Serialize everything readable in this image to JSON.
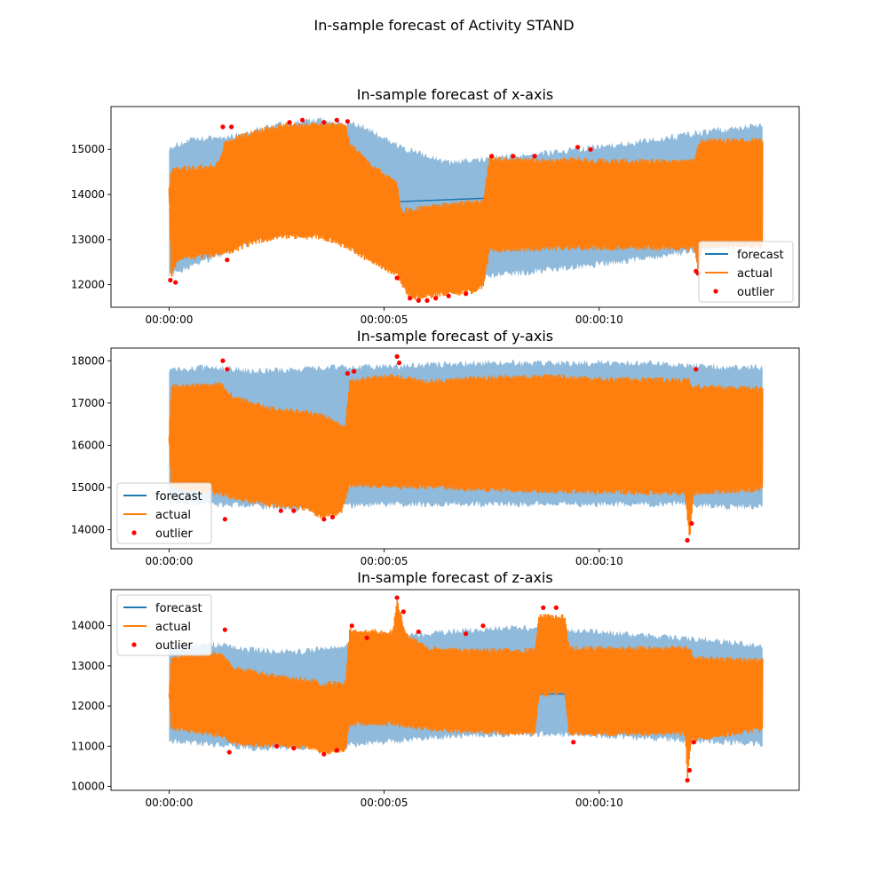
{
  "figure": {
    "suptitle": "In-sample forecast of Activity STAND"
  },
  "colors": {
    "forecast": "#1f77b4",
    "actual": "#ff7f0e",
    "outlier": "#ff0000",
    "band": "#8fbadb"
  },
  "chart_data": [
    {
      "type": "line",
      "title": "In-sample forecast of x-axis",
      "xlabel": "",
      "ylabel": "",
      "x_unit": "seconds",
      "xlim": [
        -1.35,
        14.65
      ],
      "ylim": [
        11500,
        15950
      ],
      "x_ticks": [
        0,
        5,
        10
      ],
      "x_tick_labels": [
        "00:00:00",
        "00:00:05",
        "00:00:10"
      ],
      "y_ticks": [
        12000,
        13000,
        14000,
        15000
      ],
      "y_tick_labels": [
        "12000",
        "13000",
        "14000",
        "15000"
      ],
      "legend": {
        "placement": "lower right",
        "entries": [
          "forecast",
          "actual",
          "outlier"
        ]
      },
      "series": [
        {
          "name": "forecast",
          "x": [
            0,
            13.8
          ],
          "values": [
            13650,
            14150
          ]
        },
        {
          "name": "actual",
          "upper": [
            [
              0,
              14150
            ],
            [
              0.05,
              14600
            ],
            [
              1.1,
              14700
            ],
            [
              1.3,
              15200
            ],
            [
              1.5,
              15300
            ],
            [
              2.0,
              15450
            ],
            [
              2.7,
              15600
            ],
            [
              3.5,
              15600
            ],
            [
              4.1,
              15600
            ],
            [
              4.2,
              15200
            ],
            [
              4.7,
              14700
            ],
            [
              5.3,
              14300
            ],
            [
              5.4,
              13700
            ],
            [
              6.2,
              13800
            ],
            [
              7.1,
              13900
            ],
            [
              7.3,
              13900
            ],
            [
              7.45,
              14850
            ],
            [
              9.0,
              14800
            ],
            [
              9.5,
              14850
            ],
            [
              9.8,
              14800
            ],
            [
              12.2,
              14800
            ],
            [
              12.35,
              15250
            ],
            [
              13.8,
              15250
            ]
          ],
          "lower": [
            [
              0,
              14150
            ],
            [
              0.05,
              12100
            ],
            [
              0.2,
              12500
            ],
            [
              1.0,
              12600
            ],
            [
              1.5,
              12700
            ],
            [
              2.0,
              12900
            ],
            [
              2.7,
              13000
            ],
            [
              3.5,
              13000
            ],
            [
              4.1,
              12800
            ],
            [
              4.7,
              12450
            ],
            [
              5.3,
              12150
            ],
            [
              5.6,
              11650
            ],
            [
              6.2,
              11700
            ],
            [
              7.1,
              11800
            ],
            [
              7.3,
              11900
            ],
            [
              7.45,
              12700
            ],
            [
              9.0,
              12750
            ],
            [
              9.6,
              12750
            ],
            [
              12.2,
              12750
            ],
            [
              12.3,
              12300
            ],
            [
              12.4,
              12800
            ],
            [
              13.8,
              12800
            ]
          ]
        },
        {
          "name": "outlier",
          "x": [
            0.03,
            0.15,
            1.25,
            1.35,
            1.45,
            2.8,
            3.1,
            3.6,
            3.9,
            4.15,
            5.3,
            5.6,
            5.8,
            6.0,
            6.2,
            6.5,
            6.9,
            7.5,
            8.0,
            8.5,
            9.5,
            9.8,
            12.25,
            12.3
          ],
          "values": [
            12100,
            12050,
            15500,
            12550,
            15500,
            15600,
            15650,
            15600,
            15650,
            15620,
            12150,
            11700,
            11650,
            11650,
            11700,
            11750,
            11800,
            14850,
            14850,
            14850,
            15050,
            15000,
            12300,
            12250
          ]
        }
      ],
      "band": {
        "upper": [
          [
            0,
            15050
          ],
          [
            0.5,
            15200
          ],
          [
            1.5,
            15300
          ],
          [
            2.5,
            15550
          ],
          [
            3.5,
            15650
          ],
          [
            4.5,
            15500
          ],
          [
            5.5,
            15000
          ],
          [
            6.5,
            14700
          ],
          [
            7.5,
            14800
          ],
          [
            8.5,
            14900
          ],
          [
            9.5,
            15000
          ],
          [
            10.5,
            15100
          ],
          [
            11.5,
            15250
          ],
          [
            12.5,
            15400
          ],
          [
            13.8,
            15550
          ]
        ],
        "lower": [
          [
            0,
            12200
          ],
          [
            0.5,
            12400
          ],
          [
            1.5,
            12800
          ],
          [
            2.5,
            13150
          ],
          [
            3.5,
            13250
          ],
          [
            4.5,
            12800
          ],
          [
            5.5,
            12300
          ],
          [
            6.5,
            12150
          ],
          [
            7.5,
            12200
          ],
          [
            8.5,
            12300
          ],
          [
            9.5,
            12400
          ],
          [
            10.5,
            12500
          ],
          [
            11.5,
            12650
          ],
          [
            12.5,
            12800
          ],
          [
            13.8,
            12950
          ]
        ]
      }
    },
    {
      "type": "line",
      "title": "In-sample forecast of y-axis",
      "xlabel": "",
      "ylabel": "",
      "x_unit": "seconds",
      "xlim": [
        -1.35,
        14.65
      ],
      "ylim": [
        13550,
        18300
      ],
      "x_ticks": [
        0,
        5,
        10
      ],
      "x_tick_labels": [
        "00:00:00",
        "00:00:05",
        "00:00:10"
      ],
      "y_ticks": [
        14000,
        15000,
        16000,
        17000,
        18000
      ],
      "y_tick_labels": [
        "14000",
        "15000",
        "16000",
        "17000",
        "18000"
      ],
      "legend": {
        "placement": "lower left",
        "entries": [
          "forecast",
          "actual",
          "outlier"
        ]
      },
      "series": [
        {
          "name": "forecast",
          "x": [
            0,
            13.8
          ],
          "values": [
            16200,
            16200
          ]
        },
        {
          "name": "actual",
          "upper": [
            [
              0,
              16200
            ],
            [
              0.05,
              17450
            ],
            [
              1.2,
              17500
            ],
            [
              1.5,
              17200
            ],
            [
              2.5,
              16900
            ],
            [
              3.2,
              16850
            ],
            [
              3.6,
              16750
            ],
            [
              4.1,
              16500
            ],
            [
              4.2,
              17600
            ],
            [
              5.2,
              17700
            ],
            [
              5.5,
              17650
            ],
            [
              6.0,
              17550
            ],
            [
              7.0,
              17650
            ],
            [
              9.0,
              17700
            ],
            [
              9.3,
              17650
            ],
            [
              12.1,
              17600
            ],
            [
              12.15,
              17450
            ],
            [
              13.8,
              17400
            ]
          ],
          "lower": [
            [
              0,
              16200
            ],
            [
              0.05,
              14950
            ],
            [
              1.2,
              14800
            ],
            [
              1.5,
              14700
            ],
            [
              2.5,
              14500
            ],
            [
              3.2,
              14450
            ],
            [
              3.5,
              14250
            ],
            [
              4.0,
              14350
            ],
            [
              4.2,
              15000
            ],
            [
              5.2,
              14950
            ],
            [
              6.0,
              14950
            ],
            [
              7.0,
              14900
            ],
            [
              9.0,
              14850
            ],
            [
              12.0,
              14800
            ],
            [
              12.1,
              13700
            ],
            [
              12.2,
              14800
            ],
            [
              13.8,
              14900
            ]
          ]
        },
        {
          "name": "outlier",
          "x": [
            1.25,
            1.35,
            1.3,
            2.6,
            2.9,
            3.6,
            3.8,
            4.15,
            4.3,
            5.3,
            5.35,
            12.05,
            12.15,
            12.25
          ],
          "values": [
            18000,
            17800,
            14250,
            14450,
            14450,
            14250,
            14300,
            17700,
            17750,
            18100,
            17950,
            13750,
            14150,
            17800
          ]
        }
      ],
      "band": {
        "upper": [
          [
            0,
            17800
          ],
          [
            1.0,
            17850
          ],
          [
            2.0,
            17750
          ],
          [
            3.0,
            17800
          ],
          [
            4.0,
            17850
          ],
          [
            5.0,
            17850
          ],
          [
            6.0,
            17900
          ],
          [
            7.0,
            17950
          ],
          [
            8.0,
            17950
          ],
          [
            9.0,
            17950
          ],
          [
            10.0,
            17950
          ],
          [
            11.0,
            17950
          ],
          [
            12.0,
            17900
          ],
          [
            13.0,
            17850
          ],
          [
            13.8,
            17850
          ]
        ],
        "lower": [
          [
            0,
            14650
          ],
          [
            1.0,
            14600
          ],
          [
            2.0,
            14550
          ],
          [
            3.0,
            14500
          ],
          [
            4.0,
            14550
          ],
          [
            5.0,
            14600
          ],
          [
            6.0,
            14600
          ],
          [
            7.0,
            14600
          ],
          [
            8.0,
            14600
          ],
          [
            9.0,
            14600
          ],
          [
            10.0,
            14600
          ],
          [
            11.0,
            14600
          ],
          [
            12.0,
            14600
          ],
          [
            13.0,
            14550
          ],
          [
            13.8,
            14550
          ]
        ]
      }
    },
    {
      "type": "line",
      "title": "In-sample forecast of z-axis",
      "xlabel": "",
      "ylabel": "",
      "x_unit": "seconds",
      "xlim": [
        -1.35,
        14.65
      ],
      "ylim": [
        9900,
        14900
      ],
      "x_ticks": [
        0,
        5,
        10
      ],
      "x_tick_labels": [
        "00:00:00",
        "00:00:05",
        "00:00:10"
      ],
      "y_ticks": [
        10000,
        11000,
        12000,
        13000,
        14000
      ],
      "y_tick_labels": [
        "10000",
        "11000",
        "12000",
        "13000",
        "14000"
      ],
      "legend": {
        "placement": "upper left",
        "entries": [
          "forecast",
          "actual",
          "outlier"
        ]
      },
      "series": [
        {
          "name": "forecast",
          "x": [
            0,
            13.8
          ],
          "values": [
            12300,
            12300
          ]
        },
        {
          "name": "actual",
          "upper": [
            [
              0,
              12300
            ],
            [
              0.05,
              13300
            ],
            [
              1.2,
              13350
            ],
            [
              1.5,
              13000
            ],
            [
              2.5,
              12800
            ],
            [
              3.4,
              12700
            ],
            [
              3.5,
              12600
            ],
            [
              4.1,
              12650
            ],
            [
              4.2,
              13950
            ],
            [
              5.2,
              13900
            ],
            [
              5.3,
              14700
            ],
            [
              5.5,
              13850
            ],
            [
              6.0,
              13500
            ],
            [
              7.0,
              13450
            ],
            [
              8.5,
              13450
            ],
            [
              8.6,
              14300
            ],
            [
              9.2,
              14300
            ],
            [
              9.3,
              13500
            ],
            [
              12.1,
              13500
            ],
            [
              12.2,
              13250
            ],
            [
              13.8,
              13200
            ]
          ],
          "lower": [
            [
              0,
              12300
            ],
            [
              0.05,
              11400
            ],
            [
              1.2,
              11200
            ],
            [
              1.5,
              11000
            ],
            [
              2.5,
              10950
            ],
            [
              3.4,
              10900
            ],
            [
              3.5,
              10750
            ],
            [
              4.1,
              10850
            ],
            [
              4.2,
              11500
            ],
            [
              5.2,
              11500
            ],
            [
              6.0,
              11350
            ],
            [
              7.0,
              11300
            ],
            [
              8.5,
              11250
            ],
            [
              8.6,
              12200
            ],
            [
              9.2,
              12300
            ],
            [
              9.3,
              11250
            ],
            [
              12.0,
              11250
            ],
            [
              12.05,
              10150
            ],
            [
              12.15,
              11100
            ],
            [
              13.8,
              11350
            ]
          ]
        },
        {
          "name": "outlier",
          "x": [
            1.3,
            1.4,
            2.5,
            2.9,
            3.6,
            3.9,
            4.25,
            4.6,
            5.3,
            5.45,
            5.8,
            6.9,
            7.3,
            8.7,
            9.0,
            9.4,
            12.05,
            12.1,
            12.2
          ],
          "values": [
            13900,
            10850,
            11000,
            10950,
            10800,
            10900,
            14000,
            13700,
            14700,
            14350,
            13850,
            13800,
            14000,
            14450,
            14450,
            11100,
            10150,
            10400,
            11100
          ]
        }
      ],
      "band": {
        "upper": [
          [
            0,
            13500
          ],
          [
            1.0,
            13550
          ],
          [
            2.0,
            13400
          ],
          [
            3.0,
            13350
          ],
          [
            4.0,
            13500
          ],
          [
            5.0,
            13700
          ],
          [
            6.0,
            13800
          ],
          [
            7.0,
            13900
          ],
          [
            8.0,
            13950
          ],
          [
            9.0,
            13900
          ],
          [
            10.0,
            13850
          ],
          [
            11.0,
            13750
          ],
          [
            12.0,
            13700
          ],
          [
            13.0,
            13600
          ],
          [
            13.8,
            13500
          ]
        ],
        "lower": [
          [
            0,
            11100
          ],
          [
            1.0,
            11050
          ],
          [
            2.0,
            10950
          ],
          [
            3.0,
            10950
          ],
          [
            4.0,
            11000
          ],
          [
            5.0,
            11100
          ],
          [
            6.0,
            11200
          ],
          [
            7.0,
            11250
          ],
          [
            8.0,
            11300
          ],
          [
            9.0,
            11300
          ],
          [
            10.0,
            11250
          ],
          [
            11.0,
            11200
          ],
          [
            12.0,
            11150
          ],
          [
            13.0,
            11100
          ],
          [
            13.8,
            11050
          ]
        ]
      }
    }
  ]
}
